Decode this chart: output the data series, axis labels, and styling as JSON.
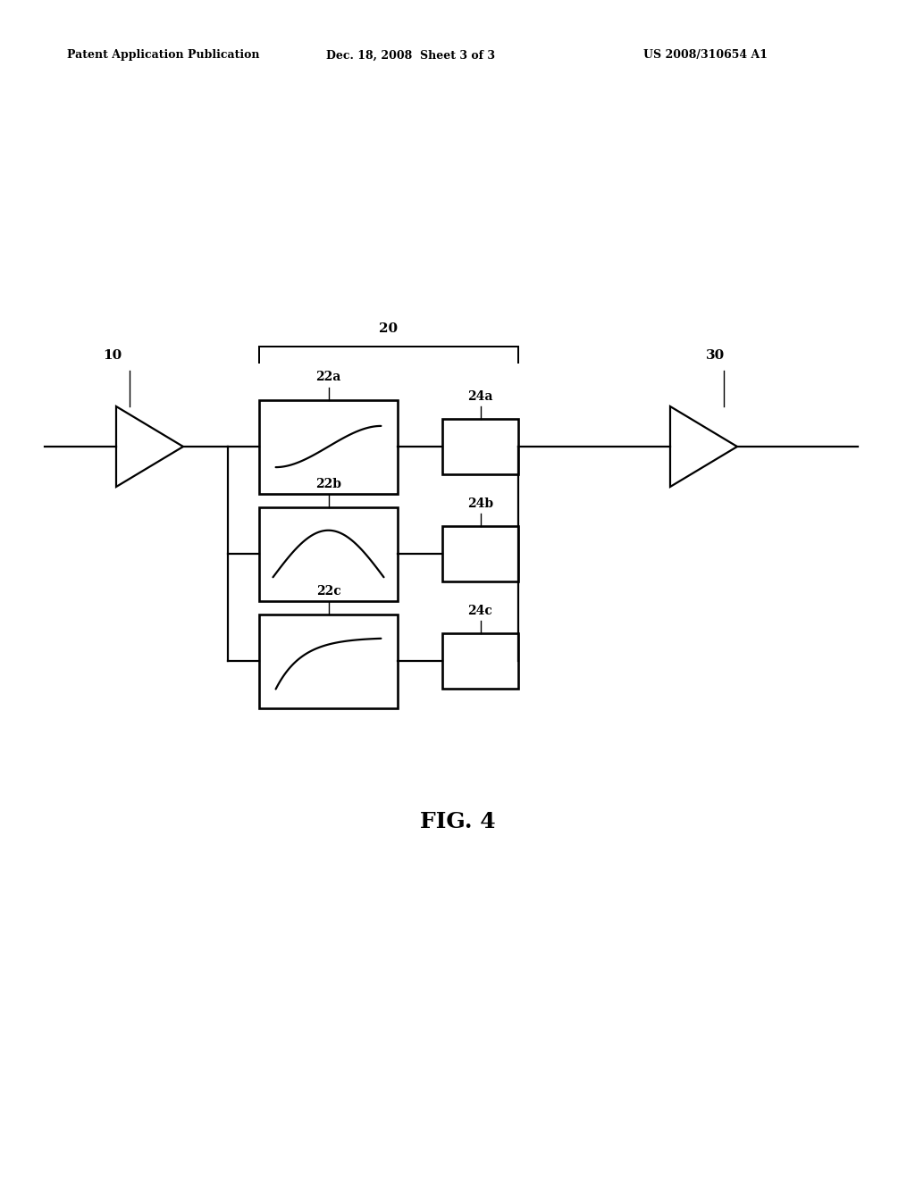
{
  "bg_color": "#ffffff",
  "line_color": "#000000",
  "header_left": "Patent Application Publication",
  "header_mid": "Dec. 18, 2008  Sheet 3 of 3",
  "header_right": "US 2008/310654 A1",
  "fig_label": "FIG. 4",
  "label_10": "10",
  "label_20": "20",
  "label_30": "30",
  "label_22a": "22a",
  "label_22b": "22b",
  "label_22c": "22c",
  "label_24a": "24a",
  "label_24b": "24b",
  "label_24c": "24c",
  "lw": 1.6
}
